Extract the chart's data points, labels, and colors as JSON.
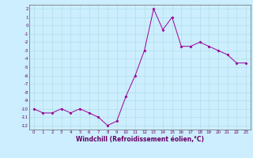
{
  "x": [
    0,
    1,
    2,
    3,
    4,
    5,
    6,
    7,
    8,
    9,
    10,
    11,
    12,
    13,
    14,
    15,
    16,
    17,
    18,
    19,
    20,
    21,
    22,
    23
  ],
  "y": [
    -10,
    -10.5,
    -10.5,
    -10,
    -10.5,
    -10,
    -10.5,
    -11,
    -12,
    -11.5,
    -8.5,
    -6,
    -3,
    2,
    -0.5,
    1,
    -2.5,
    -2.5,
    -2,
    -2.5,
    -3,
    -3.5,
    -4.5,
    -4.5
  ],
  "line_color": "#990099",
  "marker": "D",
  "marker_size": 1.5,
  "bg_color": "#cceeff",
  "grid_color": "#aadddd",
  "xlabel": "Windchill (Refroidissement éolien,°C)",
  "xlabel_fontsize": 5.5,
  "ytick_labels": [
    "2",
    "1",
    "0",
    "-1",
    "-2",
    "-3",
    "-4",
    "-5",
    "-6",
    "-7",
    "-8",
    "-9",
    "-10",
    "-11",
    "-12"
  ],
  "ytick_vals": [
    2,
    1,
    0,
    -1,
    -2,
    -3,
    -4,
    -5,
    -6,
    -7,
    -8,
    -9,
    -10,
    -11,
    -12
  ],
  "xtick_vals": [
    0,
    1,
    2,
    3,
    4,
    5,
    6,
    7,
    8,
    9,
    10,
    11,
    12,
    13,
    14,
    15,
    16,
    17,
    18,
    19,
    20,
    21,
    22,
    23
  ],
  "ylim": [
    -12.5,
    2.5
  ],
  "xlim": [
    -0.5,
    23.5
  ],
  "tick_fontsize": 4.0,
  "linewidth": 0.7
}
